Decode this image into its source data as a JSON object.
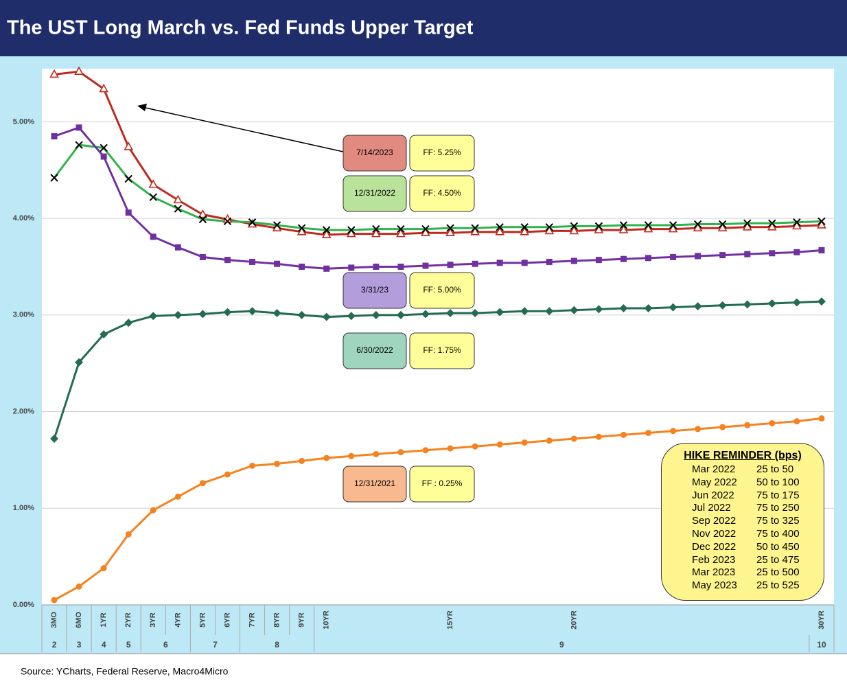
{
  "chart_data": {
    "type": "line",
    "title": "The UST Long March vs. Fed Funds Upper Target",
    "source": "Source: YCharts, Federal Reserve, Macro4Micro",
    "categories": [
      "3MO",
      "6MO",
      "1YR",
      "2YR",
      "3YR",
      "4YR",
      "5YR",
      "6YR",
      "7YR",
      "8YR",
      "9YR",
      "10YR",
      null,
      null,
      null,
      null,
      "15YR",
      null,
      null,
      null,
      null,
      "20YR",
      null,
      null,
      null,
      null,
      null,
      null,
      null,
      null,
      null,
      "30YR"
    ],
    "x_groups": [
      {
        "label": "2",
        "count": 1
      },
      {
        "label": "3",
        "count": 1
      },
      {
        "label": "4",
        "count": 1
      },
      {
        "label": "5",
        "count": 1
      },
      {
        "label": "6",
        "count": 2
      },
      {
        "label": "7",
        "count": 2
      },
      {
        "label": "8",
        "count": 3
      },
      {
        "label": "9",
        "count": 20
      },
      {
        "label": "10",
        "count": 1
      }
    ],
    "ylim": [
      0,
      5.55
    ],
    "yticks": [
      {
        "value": 0,
        "label": "0.00%"
      },
      {
        "value": 1,
        "label": "1.00%"
      },
      {
        "value": 2,
        "label": "2.00%"
      },
      {
        "value": 3,
        "label": "3.00%"
      },
      {
        "value": 4,
        "label": "4.00%"
      },
      {
        "value": 5,
        "label": "5.00%"
      }
    ],
    "grid": true,
    "series": [
      {
        "name": "7/14/2023",
        "ff_label": "FF: 5.25%",
        "color": "#c0281c",
        "box_color": "#e08a80",
        "marker": "triangle",
        "values": [
          5.49,
          5.52,
          5.34,
          4.74,
          4.35,
          4.19,
          4.04,
          3.99,
          3.94,
          3.9,
          3.86,
          3.83,
          3.84,
          3.84,
          3.84,
          3.85,
          3.85,
          3.86,
          3.86,
          3.86,
          3.87,
          3.87,
          3.88,
          3.88,
          3.89,
          3.89,
          3.9,
          3.9,
          3.91,
          3.91,
          3.92,
          3.93
        ]
      },
      {
        "name": "12/31/2022",
        "ff_label": "FF: 4.50%",
        "color": "#2eb34a",
        "box_color": "#b9e29a",
        "marker": "cross",
        "marker_color": "#000000",
        "values": [
          4.42,
          4.76,
          4.73,
          4.41,
          4.22,
          4.1,
          3.99,
          3.97,
          3.96,
          3.93,
          3.9,
          3.88,
          3.88,
          3.89,
          3.89,
          3.89,
          3.9,
          3.9,
          3.91,
          3.91,
          3.91,
          3.92,
          3.92,
          3.93,
          3.93,
          3.93,
          3.94,
          3.94,
          3.95,
          3.95,
          3.96,
          3.97
        ]
      },
      {
        "name": "3/31/23",
        "ff_label": "FF: 5.00%",
        "color": "#7030a0",
        "box_color": "#b39ddb",
        "marker": "square",
        "values": [
          4.85,
          4.94,
          4.64,
          4.06,
          3.81,
          3.7,
          3.6,
          3.57,
          3.55,
          3.53,
          3.5,
          3.48,
          3.49,
          3.5,
          3.5,
          3.51,
          3.52,
          3.53,
          3.54,
          3.54,
          3.55,
          3.56,
          3.57,
          3.58,
          3.59,
          3.6,
          3.61,
          3.62,
          3.63,
          3.64,
          3.65,
          3.67
        ]
      },
      {
        "name": "6/30/2022",
        "ff_label": "FF: 1.75%",
        "color": "#236b53",
        "box_color": "#9fd4bf",
        "marker": "diamond",
        "values": [
          1.72,
          2.51,
          2.8,
          2.92,
          2.99,
          3.0,
          3.01,
          3.03,
          3.04,
          3.02,
          3.0,
          2.98,
          2.99,
          3.0,
          3.0,
          3.01,
          3.02,
          3.02,
          3.03,
          3.04,
          3.04,
          3.05,
          3.06,
          3.07,
          3.07,
          3.08,
          3.09,
          3.1,
          3.11,
          3.12,
          3.13,
          3.14
        ]
      },
      {
        "name": "12/31/2021",
        "ff_label": "FF : 0.25%",
        "color": "#f5821f",
        "box_color": "#f9b98e",
        "marker": "circle",
        "values": [
          0.05,
          0.19,
          0.38,
          0.73,
          0.98,
          1.12,
          1.26,
          1.35,
          1.44,
          1.46,
          1.49,
          1.52,
          1.54,
          1.56,
          1.58,
          1.6,
          1.62,
          1.64,
          1.66,
          1.68,
          1.7,
          1.72,
          1.74,
          1.76,
          1.78,
          1.8,
          1.82,
          1.84,
          1.86,
          1.88,
          1.9,
          1.93
        ]
      }
    ],
    "hike_reminder": {
      "title": "HIKE REMINDER (bps)",
      "rows": [
        [
          "Mar 2022",
          "25 to 50"
        ],
        [
          "May 2022",
          "50 to 100"
        ],
        [
          "Jun 2022",
          "75 to 175"
        ],
        [
          "Jul 2022",
          "75 to 250"
        ],
        [
          "Sep 2022",
          "75 to 325"
        ],
        [
          "Nov 2022",
          "75 to 400"
        ],
        [
          "Dec 2022",
          "50 to 450"
        ],
        [
          "Feb 2023",
          "25 to 475"
        ],
        [
          "Mar 2023",
          "25 to 500"
        ],
        [
          "May 2023",
          "25 to 525"
        ]
      ]
    }
  }
}
